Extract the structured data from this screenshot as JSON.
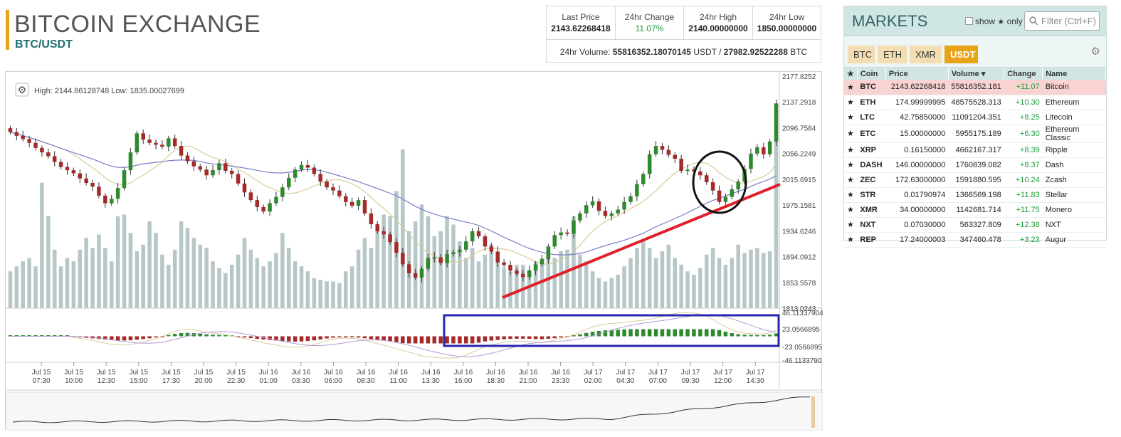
{
  "header": {
    "title": "BITCOIN EXCHANGE",
    "pair": "BTC/USDT"
  },
  "stats": {
    "last_price_label": "Last Price",
    "last_price": "2143.62268418",
    "change_label": "24hr Change",
    "change": "11.07%",
    "high_label": "24hr High",
    "high": "2140.00000000",
    "low_label": "24hr Low",
    "low": "1850.00000000",
    "volume_prefix": "24hr Volume:",
    "volume_usdt": "55816352.18070145",
    "volume_usdt_unit": "USDT /",
    "volume_btc": "27982.92522288",
    "volume_btc_unit": "BTC"
  },
  "chart": {
    "high_low_text": "High: 2144.86128748   Low: 1835.00027699",
    "price_ticks": [
      "2177.8252",
      "2137.2918",
      "2096.7584",
      "2056.2249",
      "2015.6915",
      "1975.1581",
      "1934.6246",
      "1894.0912",
      "1853.5578",
      "1813.0243"
    ],
    "macd_ticks": [
      "46.11337904",
      "23.0566895",
      "-23.0566895",
      "-46.1133790"
    ],
    "time_ticks": [
      {
        "d": "Jul 15",
        "t": "07:30"
      },
      {
        "d": "Jul 15",
        "t": "10:00"
      },
      {
        "d": "Jul 15",
        "t": "12:30"
      },
      {
        "d": "Jul 15",
        "t": "15:00"
      },
      {
        "d": "Jul 15",
        "t": "17:30"
      },
      {
        "d": "Jul 15",
        "t": "20:00"
      },
      {
        "d": "Jul 15",
        "t": "22:30"
      },
      {
        "d": "Jul 16",
        "t": "01:00"
      },
      {
        "d": "Jul 16",
        "t": "03:30"
      },
      {
        "d": "Jul 16",
        "t": "06:00"
      },
      {
        "d": "Jul 16",
        "t": "08:30"
      },
      {
        "d": "Jul 16",
        "t": "11:00"
      },
      {
        "d": "Jul 16",
        "t": "13:30"
      },
      {
        "d": "Jul 16",
        "t": "16:00"
      },
      {
        "d": "Jul 16",
        "t": "18:30"
      },
      {
        "d": "Jul 16",
        "t": "21:00"
      },
      {
        "d": "Jul 16",
        "t": "23:30"
      },
      {
        "d": "Jul 17",
        "t": "02:00"
      },
      {
        "d": "Jul 17",
        "t": "04:30"
      },
      {
        "d": "Jul 17",
        "t": "07:00"
      },
      {
        "d": "Jul 17",
        "t": "09:30"
      },
      {
        "d": "Jul 17",
        "t": "12:00"
      },
      {
        "d": "Jul 17",
        "t": "14:30"
      }
    ],
    "close_series": [
      2090,
      2084,
      2079,
      2073,
      2065,
      2058,
      2052,
      2043,
      2035,
      2030,
      2025,
      2017,
      2010,
      2004,
      1990,
      1978,
      1985,
      2002,
      2030,
      2058,
      2088,
      2078,
      2073,
      2070,
      2067,
      2080,
      2068,
      2053,
      2044,
      2036,
      2031,
      2022,
      2030,
      2041,
      2029,
      2024,
      2009,
      1995,
      1983,
      1972,
      1965,
      1978,
      1988,
      2003,
      2018,
      2031,
      2038,
      2034,
      2024,
      2012,
      2003,
      1998,
      1989,
      1980,
      1974,
      1983,
      1962,
      1945,
      1934,
      1929,
      1917,
      1900,
      1882,
      1868,
      1861,
      1875,
      1892,
      1893,
      1884,
      1898,
      1901,
      1905,
      1918,
      1934,
      1926,
      1910,
      1902,
      1885,
      1881,
      1872,
      1867,
      1862,
      1872,
      1882,
      1890,
      1910,
      1928,
      1932,
      1930,
      1951,
      1962,
      1975,
      1981,
      1966,
      1958,
      1962,
      1968,
      1980,
      1989,
      2008,
      2024,
      2055,
      2068,
      2062,
      2054,
      2048,
      2029,
      2031,
      2028,
      2022,
      2011,
      1998,
      1980,
      1988,
      2000,
      2012,
      2032,
      2056,
      2066,
      2055,
      2075,
      2135
    ],
    "volume_series": [
      0.22,
      0.25,
      0.28,
      0.3,
      0.25,
      0.75,
      0.55,
      0.35,
      0.25,
      0.3,
      0.28,
      0.35,
      0.42,
      0.36,
      0.44,
      0.36,
      0.28,
      0.55,
      0.56,
      0.45,
      0.34,
      0.38,
      0.52,
      0.45,
      0.32,
      0.26,
      0.35,
      0.52,
      0.48,
      0.42,
      0.38,
      0.36,
      0.28,
      0.24,
      0.21,
      0.26,
      0.32,
      0.42,
      0.35,
      0.3,
      0.25,
      0.28,
      0.33,
      0.45,
      0.36,
      0.28,
      0.25,
      0.22,
      0.18,
      0.17,
      0.16,
      0.16,
      0.15,
      0.22,
      0.25,
      0.35,
      0.42,
      0.36,
      0.46,
      0.56,
      0.55,
      0.7,
      0.95,
      0.46,
      0.52,
      0.62,
      0.55,
      0.43,
      0.46,
      0.55,
      0.5,
      0.4,
      0.3,
      0.36,
      0.28,
      0.32,
      0.38,
      0.28,
      0.24,
      0.22,
      0.26,
      0.26,
      0.23,
      0.28,
      0.3,
      0.35,
      0.3,
      0.34,
      0.35,
      0.55,
      0.32,
      0.28,
      0.22,
      0.18,
      0.16,
      0.18,
      0.2,
      0.25,
      0.3,
      0.36,
      0.4,
      0.36,
      0.3,
      0.34,
      0.38,
      0.3,
      0.26,
      0.22,
      0.2,
      0.24,
      0.32,
      0.36,
      0.3,
      0.26,
      0.3,
      0.38,
      0.33,
      0.35,
      0.36,
      0.33,
      0.34,
      1.0
    ],
    "overview_label": ""
  },
  "markets": {
    "title": "MARKETS",
    "show_label": "show",
    "only_label": "only",
    "filter_placeholder": "Filter (Ctrl+F)",
    "tabs": [
      "BTC",
      "ETH",
      "XMR",
      "USDT"
    ],
    "active_tab": "USDT",
    "columns": [
      "Coin",
      "Price",
      "Volume",
      "Change",
      "Name"
    ],
    "rows": [
      {
        "coin": "BTC",
        "price": "2143.62268418",
        "volume": "55816352.181",
        "change": "+11.07",
        "name": "Bitcoin"
      },
      {
        "coin": "ETH",
        "price": "174.99999995",
        "volume": "48575528.313",
        "change": "+10.30",
        "name": "Ethereum"
      },
      {
        "coin": "LTC",
        "price": "42.75850000",
        "volume": "11091204.351",
        "change": "+8.25",
        "name": "Litecoin"
      },
      {
        "coin": "ETC",
        "price": "15.00000000",
        "volume": "5955175.189",
        "change": "+6.30",
        "name": "Ethereum Classic"
      },
      {
        "coin": "XRP",
        "price": "0.16150000",
        "volume": "4662167.317",
        "change": "+8.39",
        "name": "Ripple"
      },
      {
        "coin": "DASH",
        "price": "146.00000000",
        "volume": "1760839.082",
        "change": "+8.37",
        "name": "Dash"
      },
      {
        "coin": "ZEC",
        "price": "172.63000000",
        "volume": "1591880.595",
        "change": "+10.24",
        "name": "Zcash"
      },
      {
        "coin": "STR",
        "price": "0.01790974",
        "volume": "1366569.198",
        "change": "+11.83",
        "name": "Stellar"
      },
      {
        "coin": "XMR",
        "price": "34.00000000",
        "volume": "1142681.714",
        "change": "+11.75",
        "name": "Monero"
      },
      {
        "coin": "NXT",
        "price": "0.07030000",
        "volume": "563327.809",
        "change": "+12.38",
        "name": "NXT"
      },
      {
        "coin": "REP",
        "price": "17.24000003",
        "volume": "347460.478",
        "change": "+3.23",
        "name": "Augur"
      }
    ]
  },
  "colors": {
    "up": "#2f8a2f",
    "down": "#a52a2a",
    "accent": "#e8a317",
    "teal": "#1e6f73",
    "trendline": "#e0202a",
    "macd_box": "#2626b0",
    "volume": "#b7c6c6"
  }
}
